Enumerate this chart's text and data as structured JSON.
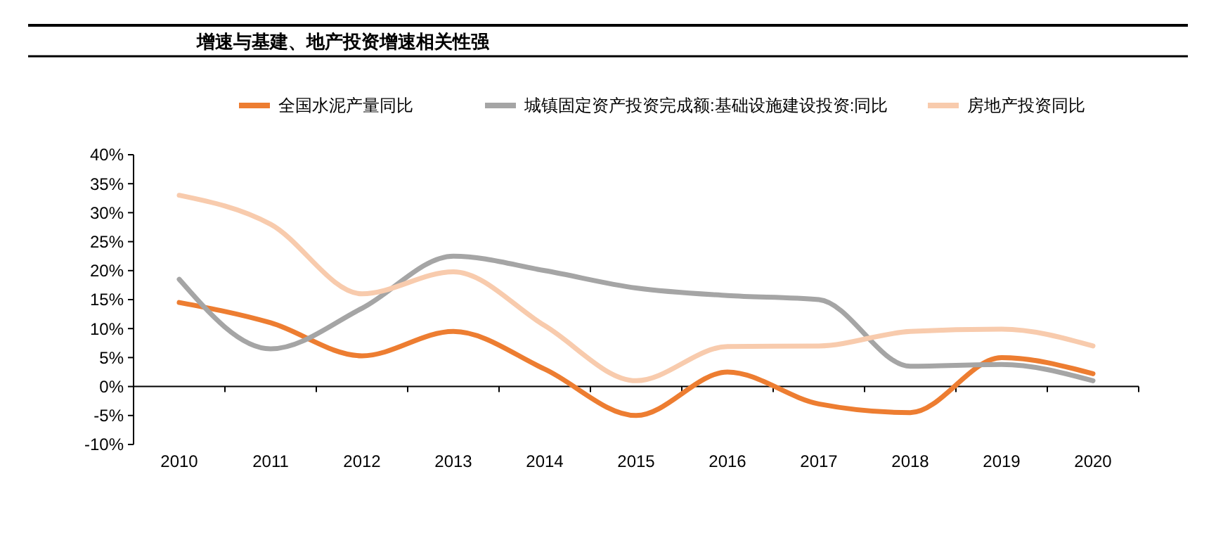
{
  "chart_data": {
    "type": "line",
    "title": "增速与基建、地产投资增速相关性强",
    "categories": [
      "2010",
      "2011",
      "2012",
      "2013",
      "2014",
      "2015",
      "2016",
      "2017",
      "2018",
      "2019",
      "2020"
    ],
    "series": [
      {
        "name": "全国水泥产量同比",
        "color": "#ed7d31",
        "values": [
          14.5,
          11,
          5.3,
          9.5,
          3,
          -5,
          2.5,
          -3,
          -4.5,
          5,
          2.2
        ]
      },
      {
        "name": "城镇固定资产投资完成额:基础设施建设投资:同比",
        "color": "#a5a5a5",
        "values": [
          18.5,
          6.5,
          13.5,
          22.5,
          20,
          17,
          15.7,
          15,
          3.5,
          3.8,
          1
        ]
      },
      {
        "name": "房地产投资同比",
        "color": "#f8cbad",
        "values": [
          33,
          28,
          16,
          19.8,
          10.5,
          1,
          6.9,
          7,
          9.5,
          9.9,
          7
        ]
      }
    ],
    "ylim": [
      -10,
      40
    ],
    "yticks": [
      {
        "value": -10,
        "label": "-10%"
      },
      {
        "value": -5,
        "label": "-5%"
      },
      {
        "value": 0,
        "label": "0%"
      },
      {
        "value": 5,
        "label": "5%"
      },
      {
        "value": 10,
        "label": "10%"
      },
      {
        "value": 15,
        "label": "15%"
      },
      {
        "value": 20,
        "label": "20%"
      },
      {
        "value": 25,
        "label": "25%"
      },
      {
        "value": 30,
        "label": "30%"
      },
      {
        "value": 35,
        "label": "35%"
      },
      {
        "value": 40,
        "label": "40%"
      }
    ],
    "legend": "top"
  }
}
